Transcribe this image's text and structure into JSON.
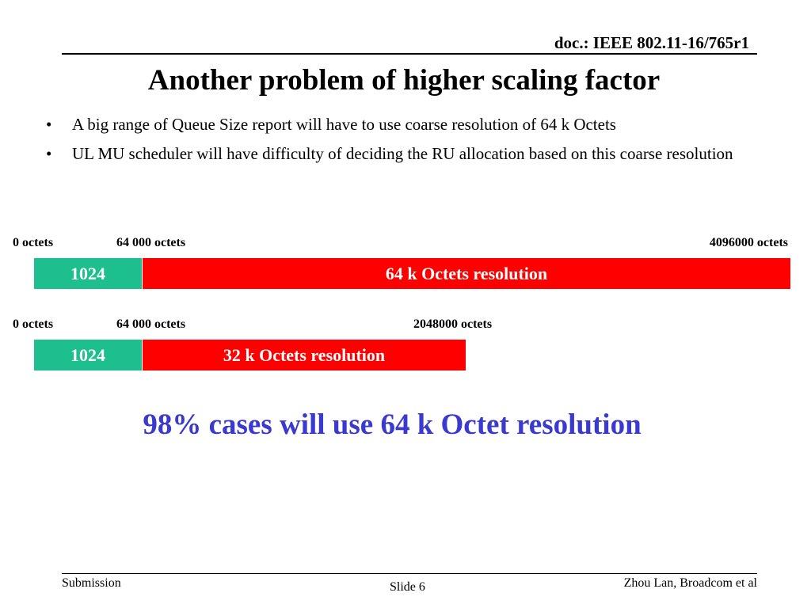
{
  "header": {
    "doc_id": "doc.: IEEE 802.11-16/765r1"
  },
  "title": "Another problem of higher scaling factor",
  "bullets": [
    "A big range of Queue Size report will have to use coarse resolution of 64 k Octets",
    "UL MU scheduler will have difficulty of deciding the RU allocation based on this coarse resolution"
  ],
  "bullet_glyph": "•",
  "scale1": {
    "start_label": "0 octets",
    "mid_label": "64 000 octets",
    "end_label": "4096000 octets",
    "teal_label": "1024",
    "red_label": "64 k Octets resolution"
  },
  "scale2": {
    "start_label": "0 octets",
    "mid_label": "64 000 octets",
    "end_label": "2048000 octets",
    "teal_label": "1024",
    "red_label": "32 k Octets resolution"
  },
  "conclusion": "98% cases will use 64 k Octet resolution",
  "footer": {
    "left": "Submission",
    "center": "Slide 6",
    "right": "Zhou Lan, Broadcom et al"
  },
  "colors": {
    "teal": "#1dbf8f",
    "red": "#ff0000",
    "conclusion_blue": "#3a3ad0"
  }
}
